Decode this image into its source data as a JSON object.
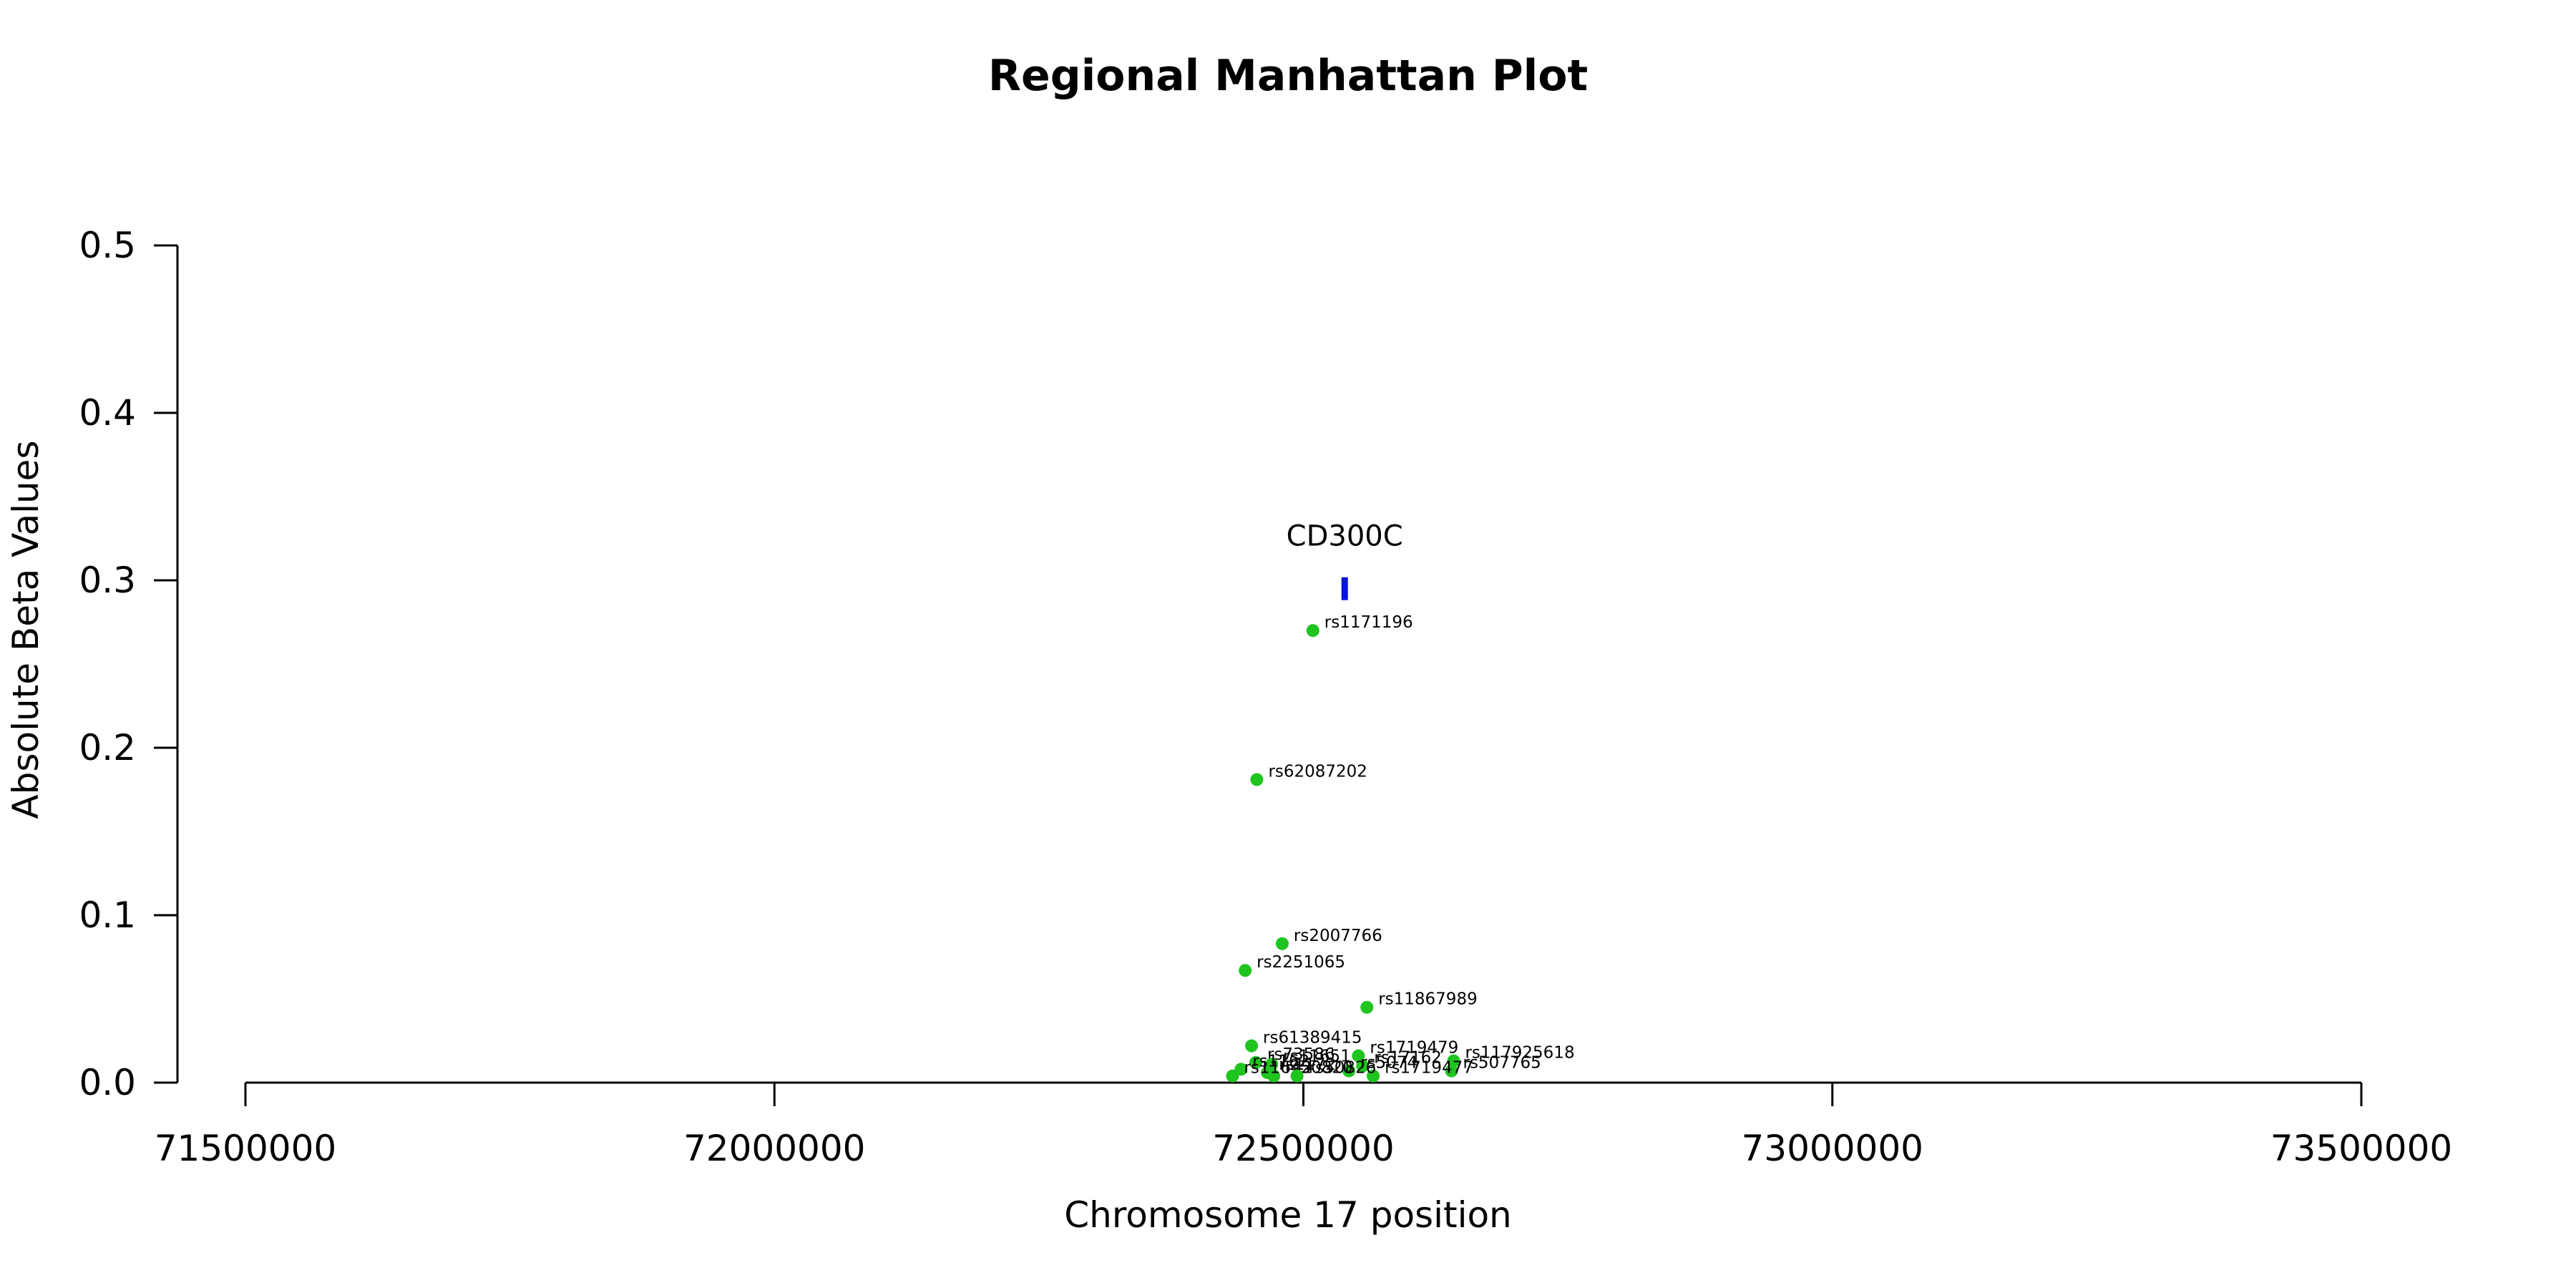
{
  "chart_data": {
    "type": "scatter",
    "title": "Regional Manhattan Plot",
    "xlabel": "Chromosome 17 position",
    "ylabel": "Absolute Beta Values",
    "xlim": [
      71500000,
      73500000
    ],
    "ylim": [
      0,
      0.5
    ],
    "x_ticks": [
      71500000,
      72000000,
      72500000,
      73000000,
      73500000
    ],
    "x_tick_labels": [
      "71500000",
      "72000000",
      "72500000",
      "73000000",
      "73500000"
    ],
    "y_ticks": [
      0,
      0.1,
      0.2,
      0.3,
      0.4,
      0.5
    ],
    "y_tick_labels": [
      "0.0",
      "0.1",
      "0.2",
      "0.3",
      "0.4",
      "0.5"
    ],
    "grid": false,
    "point_color": "#1fc41f",
    "gene_color": "#0a14d8",
    "gene": {
      "name": "CD300C",
      "start": 72536000,
      "end": 72542000,
      "y": 0.295
    },
    "points": [
      {
        "label": "rs1171196",
        "x": 72509000,
        "y": 0.27
      },
      {
        "label": "rs62087202",
        "x": 72456000,
        "y": 0.181
      },
      {
        "label": "rs2007766",
        "x": 72480000,
        "y": 0.083
      },
      {
        "label": "rs2251065",
        "x": 72445000,
        "y": 0.067
      },
      {
        "label": "rs11867989",
        "x": 72560000,
        "y": 0.045
      },
      {
        "label": "rs61389415",
        "x": 72451000,
        "y": 0.022
      },
      {
        "label": "rs1719479",
        "x": 72552000,
        "y": 0.016
      },
      {
        "label": "rs117925618",
        "x": 72642000,
        "y": 0.013
      },
      {
        "label": "rs73586",
        "x": 72455000,
        "y": 0.012
      },
      {
        "label": "rs11651",
        "x": 72470000,
        "y": 0.011
      },
      {
        "label": "rs17162",
        "x": 72556000,
        "y": 0.01
      },
      {
        "label": "rs507765",
        "x": 72640000,
        "y": 0.007
      },
      {
        "label": "rs1172",
        "x": 72466000,
        "y": 0.006
      },
      {
        "label": "rs5074",
        "x": 72543000,
        "y": 0.007
      },
      {
        "label": "rs1162",
        "x": 72441000,
        "y": 0.008
      },
      {
        "label": "rs50820",
        "x": 72472000,
        "y": 0.004
      },
      {
        "label": "rs1719477",
        "x": 72566000,
        "y": 0.004
      },
      {
        "label": "rs11642",
        "x": 72433000,
        "y": 0.004
      },
      {
        "label": "rs50826",
        "x": 72494000,
        "y": 0.004
      }
    ]
  }
}
